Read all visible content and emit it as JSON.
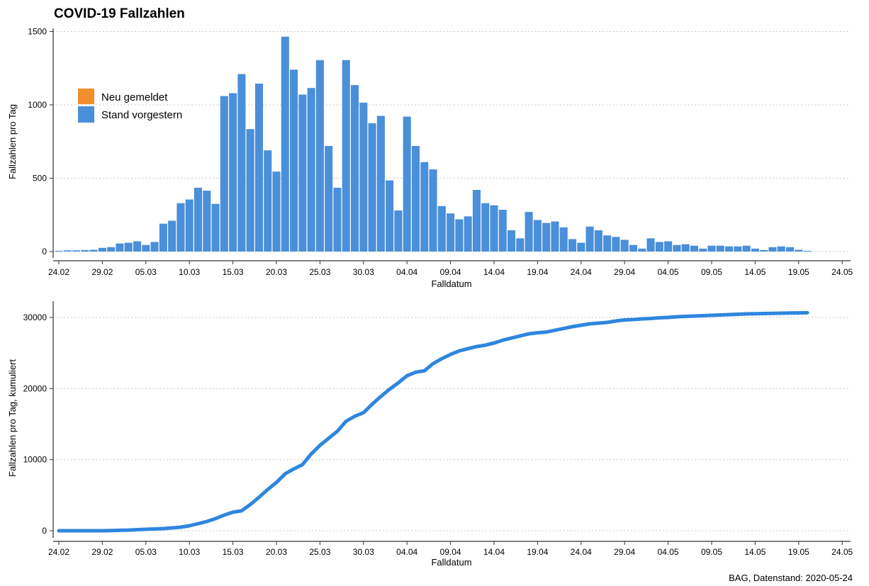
{
  "chart_data": [
    {
      "type": "bar",
      "title": "COVID-19 Fallzahlen",
      "xlabel": "Falldatum",
      "ylabel": "Fallzahlen pro Tag",
      "ylim": [
        0,
        1500
      ],
      "yticks": [
        "0",
        "500",
        "1000",
        "1500"
      ],
      "xticks": [
        "24.02",
        "29.02",
        "05.03",
        "10.03",
        "15.03",
        "20.03",
        "25.03",
        "30.03",
        "04.04",
        "09.04",
        "14.04",
        "19.04",
        "24.04",
        "29.04",
        "04.05",
        "09.05",
        "14.05",
        "19.05",
        "24.05"
      ],
      "grid": "horizontal dotted",
      "legend_position": "top-left",
      "series": [
        {
          "name": "Neu gemeldet",
          "color": "#F28E2B",
          "values": [
            0,
            0,
            0,
            0,
            0,
            0,
            0,
            0,
            0,
            0,
            0,
            0,
            0,
            0,
            0,
            0,
            0,
            0,
            0,
            0,
            0,
            0,
            0,
            0,
            0,
            0,
            0,
            0,
            0,
            0,
            0,
            0,
            0,
            0,
            0,
            0,
            0,
            0,
            0,
            0,
            0,
            0,
            0,
            0,
            0,
            0,
            0,
            0,
            0,
            0,
            0,
            0,
            0,
            0,
            0,
            0,
            0,
            0,
            0,
            0,
            0,
            0,
            0,
            0,
            0,
            0,
            0,
            0,
            0,
            0,
            0,
            0,
            0,
            0,
            0,
            0,
            0,
            0,
            0,
            0,
            0,
            0,
            0,
            0,
            0,
            0,
            0,
            0,
            0,
            0,
            0,
            0,
            0,
            0,
            0,
            0,
            0,
            10,
            2
          ]
        },
        {
          "name": "Stand vorgestern",
          "color": "#4A8FD9",
          "values": [
            5,
            8,
            8,
            10,
            12,
            25,
            30,
            55,
            60,
            70,
            45,
            65,
            190,
            210,
            330,
            355,
            435,
            415,
            325,
            1060,
            1080,
            1210,
            835,
            1145,
            690,
            545,
            1465,
            1240,
            1070,
            1115,
            1305,
            720,
            435,
            1305,
            1135,
            1015,
            875,
            925,
            485,
            280,
            920,
            720,
            610,
            560,
            310,
            260,
            220,
            240,
            420,
            330,
            315,
            285,
            145,
            90,
            270,
            215,
            195,
            205,
            165,
            85,
            60,
            170,
            145,
            110,
            100,
            80,
            45,
            20,
            90,
            65,
            70,
            45,
            50,
            40,
            20,
            40,
            40,
            35,
            35,
            40,
            20,
            10,
            30,
            35,
            30,
            12,
            5
          ]
        }
      ]
    },
    {
      "type": "line",
      "title": "",
      "xlabel": "Falldatum",
      "ylabel": "Fallzahlen pro Tag, kumuliert",
      "ylim": [
        0,
        32000
      ],
      "yticks": [
        "0",
        "10000",
        "20000",
        "30000"
      ],
      "xticks": [
        "24.02",
        "29.02",
        "05.03",
        "10.03",
        "15.03",
        "20.03",
        "25.03",
        "30.03",
        "04.04",
        "09.04",
        "14.04",
        "19.04",
        "24.04",
        "29.04",
        "04.05",
        "09.05",
        "14.05",
        "19.05",
        "24.05"
      ],
      "grid": "horizontal dotted",
      "series": [
        {
          "color": "#2E86DE",
          "values": [
            0,
            0,
            0,
            0,
            0,
            0,
            30,
            60,
            90,
            150,
            200,
            250,
            300,
            400,
            500,
            700,
            1000,
            1300,
            1700,
            2200,
            2600,
            2800,
            3700,
            4700,
            5800,
            6800,
            8000,
            8700,
            9300,
            10800,
            12000,
            13000,
            14000,
            15400,
            16100,
            16600,
            17800,
            18900,
            19900,
            20800,
            21800,
            22300,
            22500,
            23500,
            24200,
            24800,
            25300,
            25600,
            25900,
            26100,
            26400,
            26800,
            27100,
            27400,
            27700,
            27850,
            27950,
            28200,
            28450,
            28700,
            28900,
            29100,
            29200,
            29300,
            29500,
            29650,
            29700,
            29800,
            29850,
            29950,
            30000,
            30100,
            30150,
            30200,
            30250,
            30300,
            30350,
            30400,
            30450,
            30500,
            30520,
            30550,
            30580,
            30600,
            30620,
            30640,
            30660
          ]
        }
      ]
    }
  ],
  "caption": "BAG, Datenstand: 2020-05-24"
}
